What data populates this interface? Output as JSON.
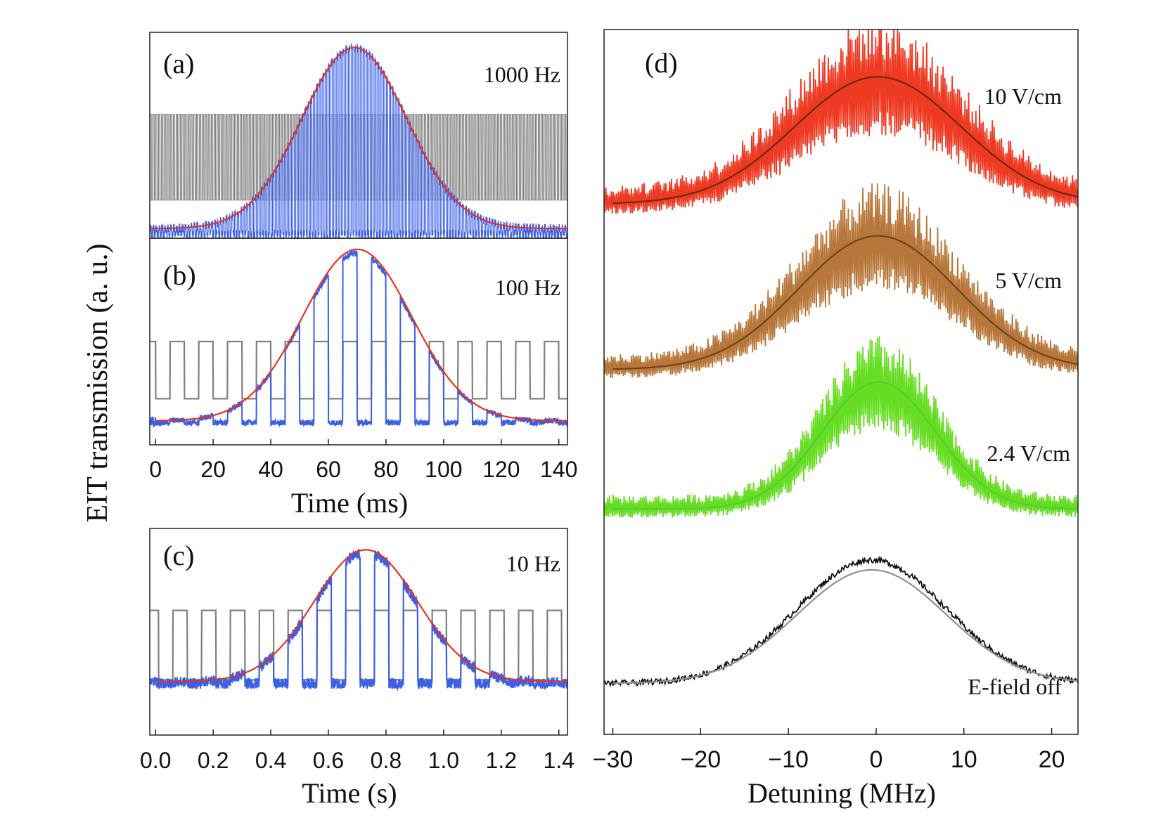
{
  "figure": {
    "ylabel": "EIT transmission (a. u.)",
    "colors": {
      "blue": "#3a5fe8",
      "gray": "#808080",
      "red": "#e8321e",
      "axis": "#222222"
    }
  },
  "chart_data": [
    {
      "id": "a",
      "type": "line",
      "panel_label": "(a)",
      "annotation": "1000 Hz",
      "x": [
        0,
        143
      ],
      "xunit": "ms",
      "series": [
        {
          "name": "EIT signal",
          "color": "#3a5fe8",
          "modulation_hz": 1000
        },
        {
          "name": "modulation",
          "color": "#808080",
          "levels": [
            0.2,
            0.65
          ]
        },
        {
          "name": "Gaussian fit",
          "color": "#e8321e",
          "center": 70,
          "sigma": 18,
          "baseline": 0.05,
          "peak": 1.0
        }
      ],
      "ylim": [
        0,
        1.08
      ]
    },
    {
      "id": "b",
      "type": "line",
      "panel_label": "(b)",
      "annotation": "100 Hz",
      "xlabel": "Time (ms)",
      "xticks": [
        "0",
        "20",
        "40",
        "60",
        "80",
        "100",
        "120",
        "140"
      ],
      "xlim": [
        -2,
        143
      ],
      "series": [
        {
          "name": "EIT signal",
          "color": "#3a5fe8",
          "modulation_hz": 100,
          "period_ms": 10
        },
        {
          "name": "modulation",
          "color": "#808080",
          "levels": [
            0.19,
            0.5
          ]
        },
        {
          "name": "Gaussian fit",
          "color": "#e8321e",
          "center": 70,
          "sigma": 19,
          "baseline": 0.07,
          "peak": 1.0
        }
      ],
      "ylim": [
        -0.06,
        1.06
      ]
    },
    {
      "id": "c",
      "type": "line",
      "panel_label": "(c)",
      "annotation": "10 Hz",
      "xlabel": "Time (s)",
      "xticks": [
        "0.0",
        "0.2",
        "0.4",
        "0.6",
        "0.8",
        "1.0",
        "1.2",
        "1.4"
      ],
      "xlim": [
        -0.02,
        1.43
      ],
      "series": [
        {
          "name": "EIT signal",
          "color": "#3a5fe8",
          "modulation_hz": 10,
          "period_s": 0.1
        },
        {
          "name": "modulation",
          "color": "#808080",
          "levels": [
            0.21,
            0.6
          ]
        },
        {
          "name": "Gaussian fit",
          "color": "#e8321e",
          "center": 0.73,
          "sigma": 0.18,
          "baseline": 0.2,
          "peak": 0.94
        }
      ],
      "ylim": [
        -0.1,
        1.06
      ]
    },
    {
      "id": "d",
      "type": "line",
      "panel_label": "(d)",
      "xlabel": "Detuning (MHz)",
      "xticks": [
        "−30",
        "−20",
        "−10",
        "0",
        "10",
        "20"
      ],
      "xtick_values": [
        -30,
        -20,
        -10,
        0,
        10,
        20
      ],
      "xlim": [
        -31,
        23
      ],
      "series": [
        {
          "name": "10 V/cm",
          "color": "#ee3a22",
          "fit_color": "#6b2a12",
          "center": 0.2,
          "sigma": 9.5,
          "offset": 3.3,
          "amp": 0.95,
          "noise": 0.35
        },
        {
          "name": "5 V/cm",
          "color": "#b8773a",
          "fit_color": "#6b4420",
          "center": 0.2,
          "sigma": 9.0,
          "offset": 2.16,
          "amp": 1.0,
          "noise": 0.3
        },
        {
          "name": "2.4 V/cm",
          "color": "#66dd22",
          "fit_color": "#55cc33",
          "center": 0.3,
          "sigma": 6.5,
          "offset": 1.2,
          "amp": 0.95,
          "noise": 0.28
        },
        {
          "name": "E-field off",
          "color": "#111111",
          "fit_color": "#909090",
          "center": -0.5,
          "sigma": 8.5,
          "offset": 0.0,
          "amp": 0.85,
          "noise": 0.04
        }
      ],
      "ylim": [
        -0.35,
        4.5
      ]
    }
  ]
}
